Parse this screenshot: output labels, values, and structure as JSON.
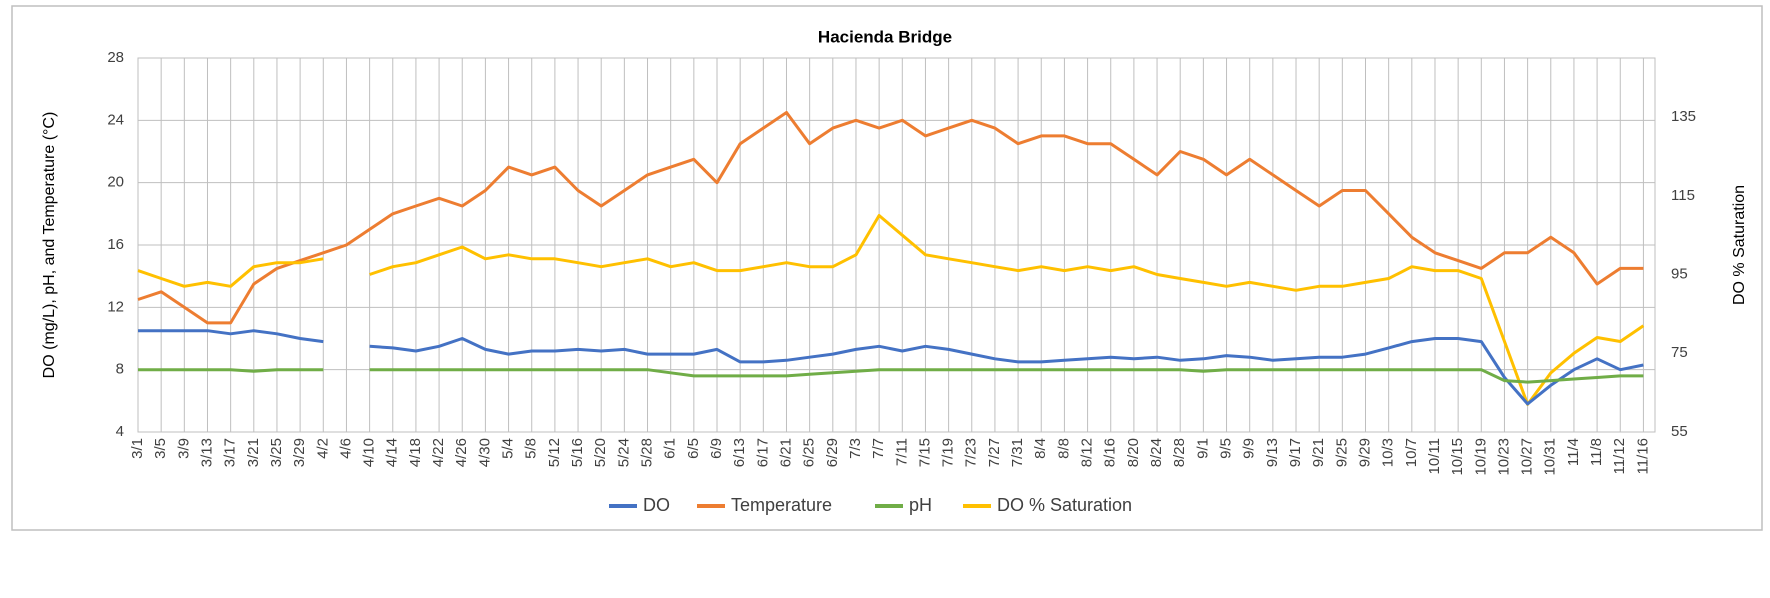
{
  "chart_data": {
    "type": "line",
    "title": "Hacienda Bridge",
    "y_label": "DO (mg/L), pH, and Temperature (°C)",
    "y2_label": "DO % Saturation",
    "categories": [
      "3/1",
      "3/5",
      "3/9",
      "3/13",
      "3/17",
      "3/21",
      "3/25",
      "3/29",
      "4/2",
      "4/6",
      "4/10",
      "4/14",
      "4/18",
      "4/22",
      "4/26",
      "4/30",
      "5/4",
      "5/8",
      "5/12",
      "5/16",
      "5/20",
      "5/24",
      "5/28",
      "6/1",
      "6/5",
      "6/9",
      "6/13",
      "6/17",
      "6/21",
      "6/25",
      "6/29",
      "7/3",
      "7/7",
      "7/11",
      "7/15",
      "7/19",
      "7/23",
      "7/27",
      "7/31",
      "8/4",
      "8/8",
      "8/12",
      "8/16",
      "8/20",
      "8/24",
      "8/28",
      "9/1",
      "9/5",
      "9/9",
      "9/13",
      "9/17",
      "9/21",
      "9/25",
      "9/29",
      "10/3",
      "10/7",
      "10/11",
      "10/15",
      "10/19",
      "10/23",
      "10/27",
      "10/31",
      "11/4",
      "11/8",
      "11/12",
      "11/16"
    ],
    "series": [
      {
        "name": "DO",
        "color": "#4472c4",
        "values": [
          10.5,
          10.5,
          10.5,
          10.5,
          10.3,
          10.5,
          10.3,
          10,
          9.8,
          null,
          9.5,
          9.4,
          9.2,
          9.5,
          10,
          9.3,
          9,
          9.2,
          9.2,
          9.3,
          9.2,
          9.3,
          9,
          9,
          9,
          9.3,
          8.5,
          8.5,
          8.6,
          8.8,
          9,
          9.3,
          9.5,
          9.2,
          9.5,
          9.3,
          9,
          8.7,
          8.5,
          8.5,
          8.6,
          8.7,
          8.8,
          8.7,
          8.8,
          8.6,
          8.7,
          8.9,
          8.8,
          8.6,
          8.7,
          8.8,
          8.8,
          9,
          9.4,
          9.8,
          10,
          10,
          9.8,
          7.5,
          5.8,
          7,
          8,
          8.7,
          8,
          8.3
        ]
      },
      {
        "name": "Temperature",
        "color": "#ed7d31",
        "values": [
          12.5,
          13,
          12,
          11,
          11,
          13.5,
          14.5,
          15,
          15.5,
          16,
          17,
          18,
          18.5,
          19,
          18.5,
          19.5,
          21,
          20.5,
          21,
          19.5,
          18.5,
          19.5,
          20.5,
          21,
          21.5,
          20,
          22.5,
          23.5,
          24.5,
          22.5,
          23.5,
          24,
          23.5,
          24,
          23,
          23.5,
          24,
          23.5,
          22.5,
          23,
          23,
          22.5,
          22.5,
          21.5,
          20.5,
          22,
          21.5,
          20.5,
          21.5,
          20.5,
          19.5,
          18.5,
          19.5,
          19.5,
          18,
          16.5,
          15.5,
          15,
          14.5,
          15.5,
          15.5,
          16.5,
          15.5,
          13.5,
          14.5,
          14.5
        ]
      },
      {
        "name": "pH",
        "color": "#70ad47",
        "values": [
          8,
          8,
          8,
          8,
          8,
          7.9,
          8,
          8,
          8,
          null,
          8,
          8,
          8,
          8,
          8,
          8,
          8,
          8,
          8,
          8,
          8,
          8,
          8,
          7.8,
          7.6,
          7.6,
          7.6,
          7.6,
          7.6,
          7.7,
          7.8,
          7.9,
          8,
          8,
          8,
          8,
          8,
          8,
          8,
          8,
          8,
          8,
          8,
          8,
          8,
          8,
          7.9,
          8,
          8,
          8,
          8,
          8,
          8,
          8,
          8,
          8,
          8,
          8,
          8,
          7.3,
          7.2,
          7.3,
          7.4,
          7.5,
          7.6,
          7.6
        ]
      },
      {
        "name": "DO % Saturation",
        "color": "#ffc000",
        "axis": "y2",
        "values": [
          96,
          94,
          92,
          93,
          92,
          97,
          98,
          98,
          99,
          null,
          95,
          97,
          98,
          100,
          102,
          99,
          100,
          99,
          99,
          98,
          97,
          98,
          99,
          97,
          98,
          96,
          96,
          97,
          98,
          97,
          97,
          100,
          110,
          105,
          100,
          99,
          98,
          97,
          96,
          97,
          96,
          97,
          96,
          97,
          95,
          94,
          93,
          92,
          93,
          92,
          91,
          92,
          92,
          93,
          94,
          97,
          96,
          96,
          94,
          78,
          62,
          70,
          75,
          79,
          78,
          82
        ]
      }
    ],
    "ylim": [
      4,
      28
    ],
    "yticks": [
      4,
      8,
      12,
      16,
      20,
      24,
      28
    ],
    "y2lim": [
      55,
      150
    ],
    "y2ticks": [
      55,
      75,
      95,
      115,
      135
    ],
    "grid": true,
    "legend": "bottom"
  }
}
